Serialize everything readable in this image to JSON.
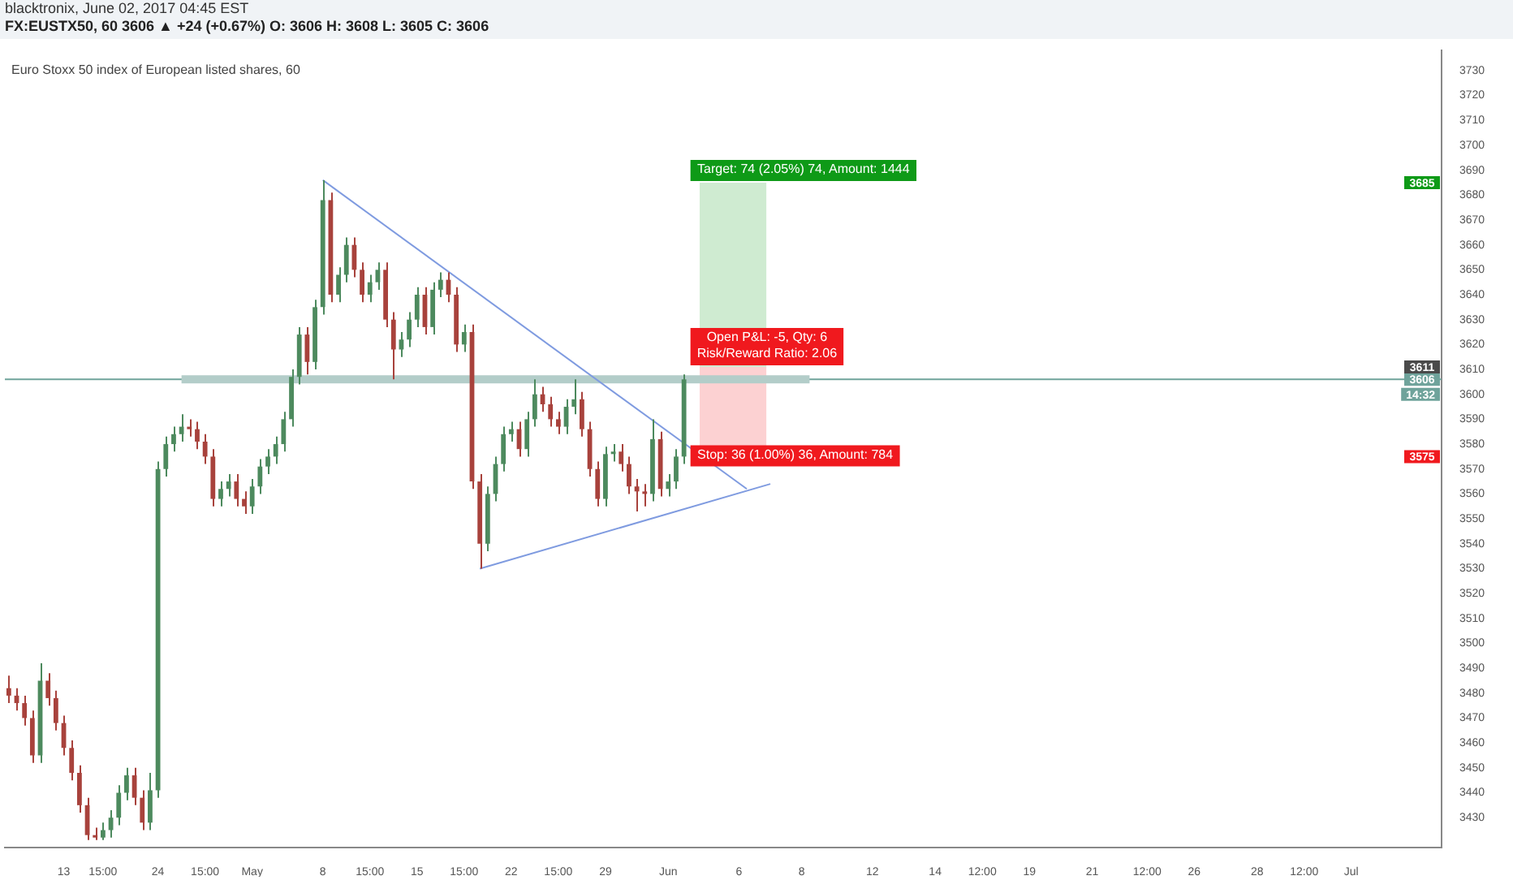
{
  "chart_data": {
    "type": "candlestick",
    "title": "blacktronix, June 02, 2017 04:45 EST",
    "subtitle": "FX:EUSTX50, 60  3606 ▲ +24 (+0.67%) O: 3606 H: 3608 L: 3605 C: 3606",
    "categories": [
      null,
      null,
      null,
      null,
      null,
      null,
      null,
      "13",
      null,
      null,
      null,
      null,
      "15:00",
      null,
      null,
      null,
      null,
      null,
      null,
      "24",
      null,
      null,
      null,
      null,
      null,
      "15:00",
      null,
      null,
      null,
      null,
      null,
      "May",
      null,
      null,
      null,
      null,
      null,
      null,
      null,
      null,
      "8",
      null,
      null,
      null,
      null,
      null,
      "15:00",
      null,
      null,
      null,
      null,
      null,
      "15",
      null,
      null,
      null,
      null,
      null,
      "15:00",
      null,
      null,
      null,
      null,
      null,
      "22",
      null,
      null,
      null,
      null,
      null,
      "15:00",
      null,
      null,
      null,
      null,
      null,
      "29",
      null,
      null,
      null,
      null,
      null,
      null,
      null,
      "Jun",
      null,
      null,
      null,
      null,
      null,
      null,
      null,
      null,
      "6",
      null,
      null,
      null,
      null,
      null,
      null,
      null,
      "8",
      null,
      null,
      null,
      null,
      null,
      null,
      null,
      null,
      "12",
      null,
      null,
      null,
      null,
      null,
      null,
      null,
      "14",
      null,
      null,
      null,
      null,
      null,
      "12:00",
      null,
      null,
      null,
      null,
      null,
      "19",
      null,
      null,
      null,
      null,
      null,
      null,
      null,
      "21",
      null,
      null,
      null,
      null,
      null,
      null,
      "12:00",
      null,
      null,
      null,
      null,
      null,
      "26",
      null,
      null,
      null,
      null,
      null,
      null,
      null,
      "28",
      null,
      null,
      null,
      null,
      null,
      "12:00",
      null,
      null,
      null,
      null,
      null,
      "Jul",
      null,
      null,
      null,
      null,
      null,
      null,
      null,
      null,
      null,
      null,
      null
    ],
    "ohlc": [
      [
        3482,
        3487,
        3476,
        3479
      ],
      [
        3479,
        3482,
        3473,
        3476
      ],
      [
        3476,
        3479,
        3467,
        3470
      ],
      [
        3470,
        3473,
        3452,
        3455
      ],
      [
        3455,
        3492,
        3452,
        3485
      ],
      [
        3485,
        3488,
        3475,
        3478
      ],
      [
        3478,
        3481,
        3465,
        3468
      ],
      [
        3468,
        3471,
        3455,
        3458
      ],
      [
        3458,
        3461,
        3445,
        3448
      ],
      [
        3448,
        3451,
        3432,
        3435
      ],
      [
        3435,
        3438,
        3421,
        3423
      ],
      [
        3423,
        3426,
        3421,
        3422
      ],
      [
        3422,
        3428,
        3421,
        3425
      ],
      [
        3425,
        3433,
        3422,
        3430
      ],
      [
        3430,
        3443,
        3427,
        3440
      ],
      [
        3440,
        3450,
        3437,
        3447
      ],
      [
        3447,
        3450,
        3435,
        3438
      ],
      [
        3438,
        3441,
        3425,
        3428
      ],
      [
        3428,
        3448,
        3425,
        3441
      ],
      [
        3441,
        3573,
        3438,
        3570
      ],
      [
        3570,
        3583,
        3567,
        3580
      ],
      [
        3580,
        3587,
        3577,
        3584
      ],
      [
        3584,
        3592,
        3581,
        3587
      ],
      [
        3587,
        3590,
        3583,
        3586
      ],
      [
        3586,
        3589,
        3578,
        3581
      ],
      [
        3581,
        3584,
        3572,
        3575
      ],
      [
        3575,
        3578,
        3555,
        3558
      ],
      [
        3558,
        3565,
        3555,
        3562
      ],
      [
        3562,
        3568,
        3559,
        3565
      ],
      [
        3565,
        3568,
        3555,
        3558
      ],
      [
        3558,
        3561,
        3552,
        3555
      ],
      [
        3555,
        3566,
        3552,
        3563
      ],
      [
        3563,
        3574,
        3560,
        3571
      ],
      [
        3571,
        3578,
        3568,
        3575
      ],
      [
        3575,
        3583,
        3572,
        3580
      ],
      [
        3580,
        3593,
        3577,
        3590
      ],
      [
        3590,
        3610,
        3587,
        3607
      ],
      [
        3607,
        3627,
        3604,
        3624
      ],
      [
        3624,
        3627,
        3608,
        3613
      ],
      [
        3613,
        3638,
        3610,
        3635
      ],
      [
        3635,
        3686,
        3632,
        3678
      ],
      [
        3678,
        3681,
        3637,
        3640
      ],
      [
        3640,
        3651,
        3637,
        3648
      ],
      [
        3648,
        3663,
        3645,
        3660
      ],
      [
        3660,
        3663,
        3647,
        3650
      ],
      [
        3650,
        3653,
        3637,
        3640
      ],
      [
        3640,
        3648,
        3637,
        3645
      ],
      [
        3645,
        3653,
        3642,
        3650
      ],
      [
        3650,
        3653,
        3627,
        3630
      ],
      [
        3630,
        3633,
        3606,
        3618
      ],
      [
        3618,
        3625,
        3615,
        3622
      ],
      [
        3622,
        3633,
        3619,
        3630
      ],
      [
        3630,
        3643,
        3627,
        3640
      ],
      [
        3640,
        3643,
        3624,
        3627
      ],
      [
        3627,
        3645,
        3624,
        3642
      ],
      [
        3642,
        3649,
        3639,
        3646
      ],
      [
        3646,
        3649,
        3637,
        3640
      ],
      [
        3640,
        3643,
        3617,
        3620
      ],
      [
        3620,
        3628,
        3617,
        3625
      ],
      [
        3625,
        3628,
        3562,
        3565
      ],
      [
        3565,
        3568,
        3530,
        3540
      ],
      [
        3540,
        3563,
        3537,
        3560
      ],
      [
        3560,
        3575,
        3557,
        3572
      ],
      [
        3572,
        3587,
        3569,
        3584
      ],
      [
        3584,
        3589,
        3581,
        3586
      ],
      [
        3586,
        3589,
        3575,
        3578
      ],
      [
        3578,
        3593,
        3575,
        3590
      ],
      [
        3590,
        3606,
        3587,
        3600
      ],
      [
        3600,
        3603,
        3593,
        3596
      ],
      [
        3596,
        3599,
        3587,
        3590
      ],
      [
        3590,
        3593,
        3584,
        3587
      ],
      [
        3587,
        3598,
        3584,
        3595
      ],
      [
        3595,
        3606,
        3592,
        3598
      ],
      [
        3598,
        3601,
        3583,
        3586
      ],
      [
        3586,
        3589,
        3567,
        3570
      ],
      [
        3570,
        3573,
        3555,
        3558
      ],
      [
        3558,
        3579,
        3555,
        3576
      ],
      [
        3576,
        3580,
        3573,
        3577
      ],
      [
        3577,
        3580,
        3569,
        3572
      ],
      [
        3572,
        3575,
        3560,
        3563
      ],
      [
        3563,
        3566,
        3553,
        3561
      ],
      [
        3561,
        3564,
        3555,
        3560
      ],
      [
        3560,
        3590,
        3557,
        3582
      ],
      [
        3582,
        3585,
        3559,
        3562
      ],
      [
        3562,
        3568,
        3559,
        3565
      ],
      [
        3565,
        3578,
        3562,
        3575
      ],
      [
        3575,
        3608,
        3572,
        3606
      ],
      null,
      null,
      null,
      null,
      null,
      null,
      null,
      null,
      null,
      null,
      null,
      null,
      null,
      null,
      null,
      null,
      null,
      null,
      null,
      null,
      null,
      null,
      null,
      null,
      null,
      null,
      null,
      null,
      null,
      null,
      null,
      null,
      null,
      null,
      null,
      null,
      null,
      null,
      null,
      null,
      null,
      null,
      null,
      null,
      null,
      null,
      null,
      null,
      null,
      null,
      null,
      null,
      null,
      null,
      null,
      null,
      null,
      null,
      null,
      null,
      null,
      null,
      null,
      null,
      null,
      null,
      null,
      null,
      null,
      null,
      null,
      null,
      null,
      null,
      null,
      null,
      null,
      null,
      null,
      null,
      null,
      null,
      null,
      null,
      null,
      null,
      null,
      null,
      null,
      null,
      null,
      null,
      null,
      null,
      null,
      null
    ],
    "series": [
      {
        "type": "line",
        "color": "#7f9be0",
        "values": [
          null,
          null,
          null,
          null,
          null,
          null,
          null,
          null,
          null,
          null,
          null,
          null,
          null,
          null,
          null,
          null,
          null,
          null,
          null,
          null,
          null,
          null,
          null,
          null,
          null,
          null,
          null,
          null,
          null,
          null,
          null,
          null,
          null,
          null,
          null,
          null,
          null,
          null,
          null,
          null,
          3686,
          null,
          null,
          null,
          null,
          null,
          null,
          null,
          null,
          null,
          null,
          null,
          null,
          null,
          null,
          null,
          null,
          null,
          null,
          null,
          null,
          null,
          null,
          null,
          null,
          null,
          null,
          null,
          null,
          null,
          null,
          null,
          null,
          null,
          null,
          null,
          null,
          null,
          null,
          null,
          null,
          null,
          null,
          null,
          null,
          null,
          null,
          null,
          null,
          null,
          null,
          null,
          null,
          null,
          3562,
          null,
          null,
          null,
          null,
          null,
          null,
          null,
          null,
          null,
          null,
          null,
          null,
          null,
          null,
          null,
          null,
          null,
          null,
          null,
          null,
          null,
          null,
          null,
          null,
          null,
          null,
          null,
          null,
          null,
          null,
          null,
          null,
          null,
          null,
          null,
          null,
          null,
          null,
          null,
          null,
          null,
          null,
          null,
          null,
          null,
          null,
          null,
          null,
          null,
          null,
          null,
          null,
          null,
          null,
          null,
          null,
          null,
          null,
          null,
          null,
          null,
          null,
          null,
          null,
          null,
          null,
          null,
          null,
          null,
          null,
          null,
          null,
          null,
          null,
          null,
          null,
          null,
          null,
          null,
          null,
          null,
          null,
          null,
          null,
          null,
          null,
          null,
          null
        ]
      },
      {
        "type": "line",
        "color": "#7f9be0",
        "values": [
          null,
          null,
          null,
          null,
          null,
          null,
          null,
          null,
          null,
          null,
          null,
          null,
          null,
          null,
          null,
          null,
          null,
          null,
          null,
          null,
          null,
          null,
          null,
          null,
          null,
          null,
          null,
          null,
          null,
          null,
          null,
          null,
          null,
          null,
          null,
          null,
          null,
          null,
          null,
          null,
          null,
          null,
          null,
          null,
          null,
          null,
          null,
          null,
          null,
          null,
          null,
          null,
          null,
          null,
          null,
          null,
          null,
          null,
          null,
          null,
          3530,
          null,
          null,
          null,
          null,
          null,
          null,
          null,
          null,
          null,
          null,
          null,
          null,
          null,
          null,
          null,
          null,
          null,
          null,
          null,
          null,
          null,
          null,
          null,
          null,
          null,
          null,
          null,
          null,
          null,
          null,
          null,
          null,
          null,
          null,
          null,
          null,
          3564,
          null,
          null,
          null,
          null,
          null,
          null,
          null,
          null,
          null,
          null,
          null,
          null,
          null,
          null,
          null,
          null,
          null,
          null,
          null,
          null,
          null,
          null,
          null,
          null,
          null,
          null,
          null,
          null,
          null,
          null,
          null,
          null,
          null,
          null,
          null,
          null,
          null,
          null,
          null,
          null,
          null,
          null,
          null,
          null,
          null,
          null,
          null,
          null,
          null,
          null,
          null,
          null,
          null,
          null,
          null,
          null,
          null,
          null,
          null,
          null,
          null,
          null,
          null,
          null,
          null,
          null,
          null,
          null,
          null,
          null,
          null,
          null,
          null,
          null,
          null,
          null,
          null,
          null,
          null,
          null,
          null,
          null,
          null,
          null,
          null
        ]
      },
      {
        "type": "line",
        "color": "#b3cdc9",
        "values": [
          null,
          null,
          null,
          null,
          null,
          null,
          null,
          null,
          null,
          null,
          null,
          null,
          null,
          null,
          null,
          null,
          null,
          null,
          null,
          null,
          null,
          null,
          3606,
          null,
          null,
          null,
          null,
          null,
          null,
          null,
          null,
          null,
          null,
          null,
          null,
          null,
          null,
          null,
          null,
          null,
          null,
          null,
          null,
          null,
          null,
          null,
          null,
          null,
          null,
          null,
          null,
          null,
          null,
          null,
          null,
          null,
          null,
          null,
          null,
          null,
          null,
          null,
          null,
          null,
          null,
          null,
          null,
          null,
          null,
          null,
          null,
          null,
          null,
          null,
          null,
          null,
          null,
          null,
          null,
          null,
          null,
          null,
          null,
          null,
          null,
          null,
          null,
          null,
          null,
          null,
          null,
          null,
          null,
          null,
          null,
          null,
          null,
          null,
          null,
          null,
          null,
          null,
          3606,
          null,
          null,
          null,
          null,
          null,
          null,
          null,
          null,
          null,
          null,
          null,
          null,
          null,
          null,
          null,
          null,
          null,
          null,
          null,
          null,
          null,
          null,
          null,
          null,
          null,
          null,
          null,
          null,
          null,
          null,
          null,
          null,
          null,
          null,
          null,
          null,
          null,
          null,
          null,
          null,
          null,
          null,
          null,
          null,
          null,
          null,
          null,
          null,
          null,
          null,
          null,
          null,
          null,
          null,
          null,
          null,
          null,
          null,
          null,
          null,
          null,
          null,
          null,
          null,
          null,
          null,
          null,
          null,
          null,
          null,
          null,
          null,
          null,
          null,
          null,
          null,
          null,
          null,
          null,
          null
        ]
      }
    ],
    "ylim": [
      3418,
      3738
    ],
    "yticks": [
      3430,
      3440,
      3450,
      3460,
      3470,
      3480,
      3490,
      3500,
      3510,
      3520,
      3530,
      3540,
      3550,
      3560,
      3570,
      3580,
      3590,
      3600,
      3610,
      3620,
      3630,
      3640,
      3650,
      3660,
      3670,
      3680,
      3690,
      3700,
      3710,
      3720,
      3730
    ],
    "ref_lines": [
      {
        "axis": "y",
        "value": 3606,
        "label": "3606",
        "color": "#6fa39b"
      }
    ],
    "bands": [
      {
        "axis": "y",
        "from": 3611,
        "to": 3685,
        "label": "Target: 74 (2.05%) 74, Amount: 1444",
        "color": "#0e9a17"
      },
      {
        "axis": "y",
        "from": 3575,
        "to": 3611,
        "label": "Stop: 36 (1.00%) 36, Amount: 784",
        "color": "#f0191e"
      }
    ],
    "annotations": [
      "Euro Stoxx 50 index of European listed shares, 60",
      {
        "text": "Open P&L: -5, Qty: 6\nRisk/Reward Ratio: 2.06",
        "y": 3611
      },
      {
        "text": "3685",
        "y": 3685
      },
      {
        "text": "3611",
        "y": 3611
      },
      {
        "text": "14:32",
        "y": 3600
      },
      {
        "text": "3575",
        "y": 3575
      }
    ]
  }
}
